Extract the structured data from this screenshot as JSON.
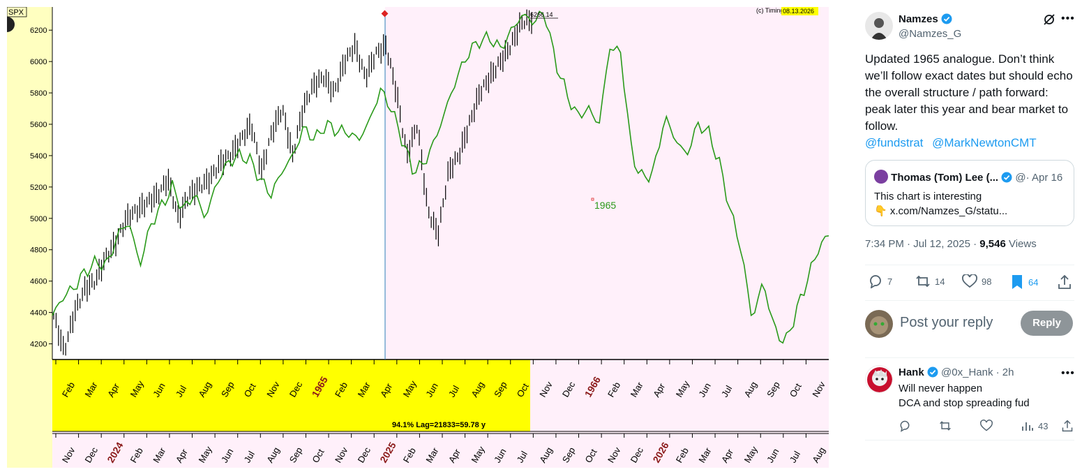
{
  "chart": {
    "symbol": "SPX",
    "credit": "(c) Timing",
    "date_badge": "08.13.2026",
    "peak_label": "6266.14",
    "analogue_label": "1965",
    "stat_label": "94.1% Lag=21833=59.78 y",
    "colors": {
      "analogue_line": "#2a9a1a",
      "price_bars": "#000000",
      "highlight": "#ffff00",
      "shade": "#fff0fa",
      "year_label": "#8b1a1a"
    }
  },
  "chart_data": {
    "type": "line",
    "y_ticks": [
      4200,
      4400,
      4600,
      4800,
      5000,
      5200,
      5400,
      5600,
      5800,
      6000,
      6200
    ],
    "ylim": [
      4100,
      6330
    ],
    "top_axis_labels": [
      "Feb",
      "Mar",
      "Apr",
      "May",
      "Jun",
      "Jul",
      "Aug",
      "Sep",
      "Oct",
      "Nov",
      "Dec",
      "1965",
      "Feb",
      "Mar",
      "Apr",
      "May",
      "Jun",
      "Jul",
      "Aug",
      "Sep",
      "Oct",
      "Nov",
      "Dec",
      "1966",
      "Feb",
      "Mar",
      "Apr",
      "May",
      "Jun",
      "Jul",
      "Aug",
      "Sep",
      "Oct",
      "Nov"
    ],
    "bottom_axis_labels": [
      "Nov",
      "Dec",
      "2024",
      "Feb",
      "Mar",
      "Apr",
      "May",
      "Jun",
      "Jul",
      "Aug",
      "Sep",
      "Oct",
      "Nov",
      "Dec",
      "2025",
      "Feb",
      "Mar",
      "Apr",
      "May",
      "Jun",
      "Jul",
      "Aug",
      "Sep",
      "Oct",
      "Nov",
      "Dec",
      "2026",
      "Feb",
      "Mar",
      "Apr",
      "May",
      "Jun",
      "Jul",
      "Aug"
    ],
    "series": [
      {
        "name": "1965",
        "values": [
          4380,
          4500,
          4560,
          4660,
          4720,
          4700,
          4900,
          4980,
          4700,
          4960,
          5080,
          5200,
          5050,
          5160,
          5000,
          5220,
          5350,
          5400,
          5380,
          5250,
          5150,
          5300,
          5400,
          5580,
          5500,
          5600,
          5560,
          5550,
          5500,
          5620,
          5820,
          5700,
          5500,
          5300,
          5350,
          5500,
          5700,
          5900,
          6050,
          6130,
          6150,
          6080,
          6200,
          6300,
          6250,
          6320,
          6000,
          5800,
          5650,
          5700,
          5600,
          6100,
          6050,
          5400,
          5250,
          5300,
          5650,
          5500,
          5400,
          5600,
          5550,
          5350,
          5050,
          4800,
          4350,
          4600,
          4300,
          4200,
          4400,
          4600,
          4800,
          4900
        ]
      },
      {
        "name": "SPX",
        "values": [
          4380,
          4150,
          4400,
          4550,
          4600,
          4750,
          4850,
          5000,
          5050,
          5100,
          5150,
          5250,
          5000,
          5150,
          5200,
          5250,
          5350,
          5400,
          5500,
          5600,
          5300,
          5550,
          5700,
          5400,
          5700,
          5850,
          5900,
          5800,
          6000,
          6100,
          5900,
          6050,
          6100,
          5800,
          5400,
          5600,
          5050,
          4900,
          5300,
          5400,
          5600,
          5800,
          5900,
          6000,
          6100,
          6250,
          6266
        ]
      }
    ]
  },
  "tweet": {
    "author_name": "Namzes",
    "author_handle": "@Namzes_G",
    "text": "Updated 1965 analogue. Don’t think we’ll follow exact dates but should echo the overall structure / path forward: peak later this year and bear market to follow.",
    "mentions": [
      "@fundstrat",
      "@MarkNewtonCMT"
    ],
    "quote": {
      "name": "Thomas (Tom) Lee (...",
      "handle_date": "@· Apr 16",
      "line1": "This chart is interesting",
      "line2": "👇 x.com/Namzes_G/statu..."
    },
    "time": "7:34 PM · Jul 12, 2025 · ",
    "views_count": "9,546",
    "views_label": " Views",
    "counts": {
      "replies": "7",
      "reposts": "14",
      "likes": "98",
      "bookmarks": "64"
    },
    "reply_placeholder": "Post your reply",
    "reply_button": "Reply"
  },
  "reply": {
    "name": "Hank",
    "handle_time": " @0x_Hank · 2h",
    "line1": "Will never happen",
    "line2": "DCA and stop spreading fud",
    "views": "43"
  }
}
